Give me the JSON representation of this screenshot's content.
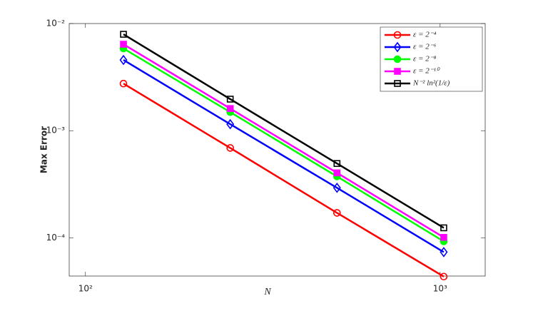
{
  "chart_data": {
    "type": "line",
    "log_x": true,
    "log_y": true,
    "grid": false,
    "legend": "northeast",
    "x_label": "N",
    "y_label": "Max Error",
    "x": [
      128,
      256,
      512,
      1024
    ],
    "xlim": [
      90,
      1340
    ],
    "ylim": [
      4.4e-05,
      0.01
    ],
    "xticks": [
      {
        "value": 100,
        "label": "10²"
      },
      {
        "value": 1000,
        "label": "10³"
      }
    ],
    "yticks": [
      {
        "value": 0.0001,
        "label": "10⁻⁴"
      },
      {
        "value": 0.001,
        "label": "10⁻³"
      },
      {
        "value": 0.01,
        "label": "10⁻²"
      }
    ],
    "series": [
      {
        "name": "ε = 2⁻⁴",
        "color": "#ff0000",
        "marker": "circle",
        "values": [
          0.00275,
          0.00069,
          0.000171,
          4.35e-05
        ]
      },
      {
        "name": "ε = 2⁻⁶",
        "color": "#0000ff",
        "marker": "diamond",
        "values": [
          0.00457,
          0.00115,
          0.000293,
          7.36e-05
        ]
      },
      {
        "name": "ε = 2⁻⁸",
        "color": "#00ff00",
        "marker": "filled-circle",
        "values": [
          0.00585,
          0.00149,
          0.000374,
          9.26e-05
        ]
      },
      {
        "name": "ε = 2⁻¹⁰",
        "color": "#ff00ff",
        "marker": "filled-square",
        "values": [
          0.00641,
          0.00161,
          0.000404,
          0.000101
        ]
      },
      {
        "name": "N⁻² ln²(1/ε)",
        "color": "#000000",
        "marker": "square",
        "values": [
          0.00794,
          0.00197,
          0.000494,
          0.000124
        ]
      }
    ]
  }
}
